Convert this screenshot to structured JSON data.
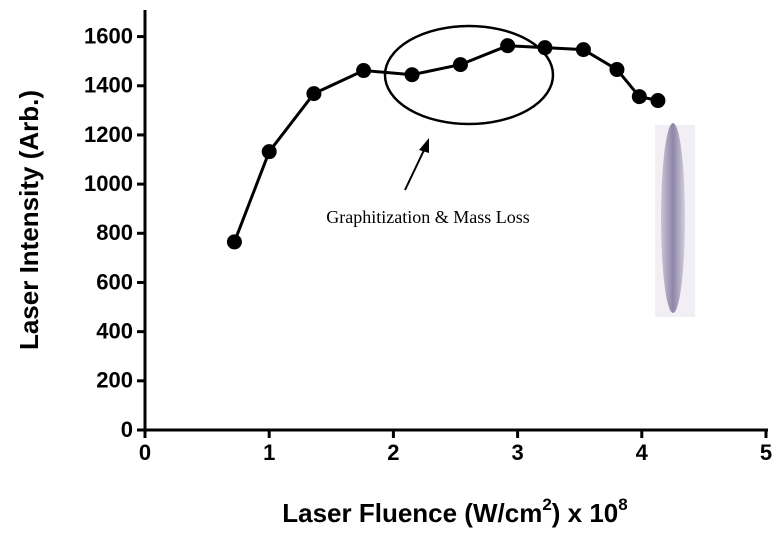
{
  "chart_data": {
    "type": "line",
    "x_label": [
      "Laser Fluence (W/cm",
      "2",
      ") x 10",
      "8"
    ],
    "y_label": "Laser Intensity (Arb.)",
    "annotation": "Graphitization & Mass Loss",
    "x": [
      0.72,
      1.0,
      1.36,
      1.76,
      2.15,
      2.54,
      2.92,
      3.22,
      3.53,
      3.8,
      3.98,
      4.13
    ],
    "series": [
      {
        "color": "#000000",
        "values": [
          765,
          1132,
          1368,
          1462,
          1445,
          1486,
          1563,
          1555,
          1547,
          1466,
          1356,
          1340
        ]
      }
    ],
    "xlim": [
      0,
      5
    ],
    "ylim": [
      0,
      1700
    ],
    "xticks": [
      0,
      1,
      2,
      3,
      4,
      5
    ],
    "yticks": [
      0,
      200,
      400,
      600,
      800,
      1000,
      1200,
      1400,
      1600
    ]
  }
}
